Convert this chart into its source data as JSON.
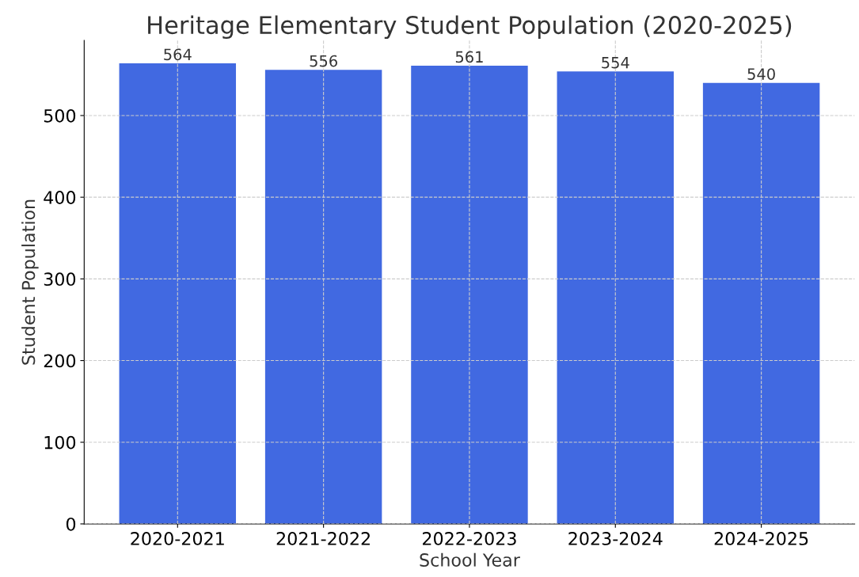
{
  "chart_data": {
    "type": "bar",
    "title": "Heritage Elementary Student Population (2020-2025)",
    "xlabel": "School Year",
    "ylabel": "Student Population",
    "categories": [
      "2020-2021",
      "2021-2022",
      "2022-2023",
      "2023-2024",
      "2024-2025"
    ],
    "values": [
      564,
      556,
      561,
      554,
      540
    ],
    "color": "#4169e1",
    "ylim": [
      0,
      592
    ],
    "yticks": [
      0,
      100,
      200,
      300,
      400,
      500
    ],
    "grid": true,
    "data_labels": true
  }
}
